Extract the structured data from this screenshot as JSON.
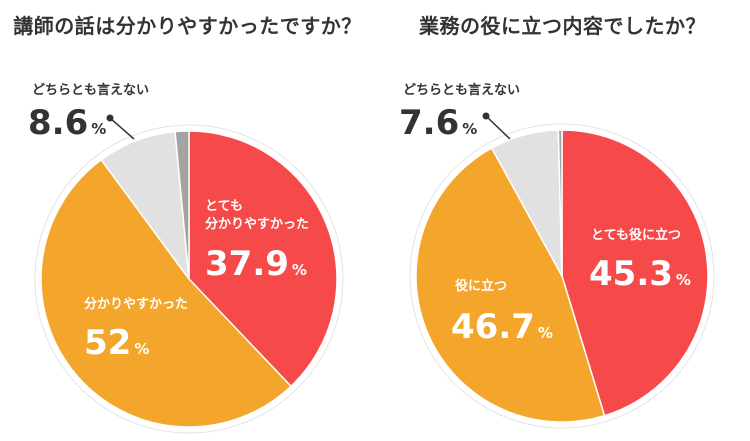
{
  "chart_data": [
    {
      "type": "pie",
      "title": "講師の話は分かりやすかったですか？",
      "series": [
        {
          "label_lines": [
            "とても",
            "分かりやすかった"
          ],
          "value": 37.9,
          "display": "37.9",
          "color": "#f64a4a"
        },
        {
          "label_lines": [
            "分かりやすかった"
          ],
          "value": 52,
          "display": "52",
          "color": "#f3a52c"
        },
        {
          "label_lines": [
            "どちらとも言えない"
          ],
          "value": 8.6,
          "display": "8.6",
          "color": "#e1e1e1"
        },
        {
          "label_lines": [],
          "value": 1.5,
          "display": "",
          "color": "#a3a3a3"
        }
      ],
      "unit": "%"
    },
    {
      "type": "pie",
      "title": "業務の役に立つ内容でしたか？",
      "series": [
        {
          "label_lines": [
            "とても役に立つ"
          ],
          "value": 45.3,
          "display": "45.3",
          "color": "#f64a4a"
        },
        {
          "label_lines": [
            "役に立つ"
          ],
          "value": 46.7,
          "display": "46.7",
          "color": "#f3a52c"
        },
        {
          "label_lines": [
            "どちらとも言えない"
          ],
          "value": 7.6,
          "display": "7.6",
          "color": "#e1e1e1"
        },
        {
          "label_lines": [],
          "value": 0.4,
          "display": "",
          "color": "#a3a3a3"
        }
      ],
      "unit": "%"
    }
  ]
}
